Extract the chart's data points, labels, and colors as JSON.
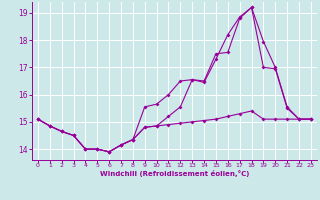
{
  "xlabel": "Windchill (Refroidissement éolien,°C)",
  "background_color": "#cce8e8",
  "grid_color": "#ffffff",
  "line_color": "#990099",
  "xlim": [
    -0.5,
    23.5
  ],
  "ylim": [
    13.6,
    19.4
  ],
  "yticks": [
    14,
    15,
    16,
    17,
    18,
    19
  ],
  "xticks": [
    0,
    1,
    2,
    3,
    4,
    5,
    6,
    7,
    8,
    9,
    10,
    11,
    12,
    13,
    14,
    15,
    16,
    17,
    18,
    19,
    20,
    21,
    22,
    23
  ],
  "line1_x": [
    0,
    1,
    2,
    3,
    4,
    5,
    6,
    7,
    8,
    9,
    10,
    11,
    12,
    13,
    14,
    15,
    16,
    17,
    18,
    19,
    20,
    21,
    22,
    23
  ],
  "line1_y": [
    15.1,
    14.85,
    14.65,
    14.5,
    14.0,
    14.0,
    13.9,
    14.15,
    14.35,
    14.8,
    14.85,
    14.9,
    14.95,
    15.0,
    15.05,
    15.1,
    15.2,
    15.3,
    15.4,
    15.1,
    15.1,
    15.1,
    15.1,
    15.1
  ],
  "line2_x": [
    0,
    1,
    2,
    3,
    4,
    5,
    6,
    7,
    8,
    9,
    10,
    11,
    12,
    13,
    14,
    15,
    16,
    17,
    18,
    19,
    20,
    21,
    22,
    23
  ],
  "line2_y": [
    15.1,
    14.85,
    14.65,
    14.5,
    14.0,
    14.0,
    13.9,
    14.15,
    14.35,
    15.55,
    15.65,
    16.0,
    16.5,
    16.55,
    16.45,
    17.3,
    18.2,
    18.85,
    19.2,
    17.95,
    17.0,
    15.55,
    15.1,
    15.1
  ],
  "line3_x": [
    0,
    1,
    2,
    3,
    4,
    5,
    6,
    7,
    8,
    9,
    10,
    11,
    12,
    13,
    14,
    15,
    16,
    17,
    18,
    19,
    20,
    21,
    22,
    23
  ],
  "line3_y": [
    15.1,
    14.85,
    14.65,
    14.5,
    14.0,
    14.0,
    13.9,
    14.15,
    14.35,
    14.8,
    14.85,
    15.2,
    15.55,
    16.55,
    16.5,
    17.5,
    17.55,
    18.8,
    19.2,
    17.0,
    16.95,
    15.5,
    15.1,
    15.1
  ]
}
